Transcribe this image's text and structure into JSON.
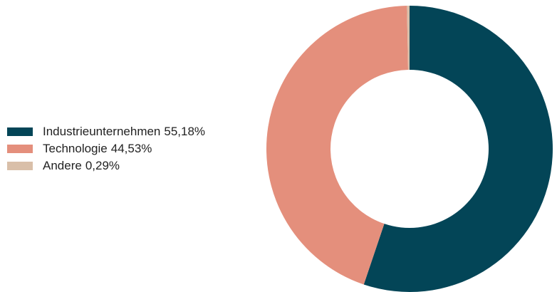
{
  "chart_data": {
    "type": "pie",
    "variant": "donut",
    "title": "",
    "legend_position": "left",
    "slices": [
      {
        "label": "Industrieunternehmen",
        "value": 55.18,
        "value_label": "55,18%",
        "color": "#034557"
      },
      {
        "label": "Technologie",
        "value": 44.53,
        "value_label": "44,53%",
        "color": "#e48f7c"
      },
      {
        "label": "Andere",
        "value": 0.29,
        "value_label": "0,29%",
        "color": "#d9bfa9"
      }
    ]
  }
}
